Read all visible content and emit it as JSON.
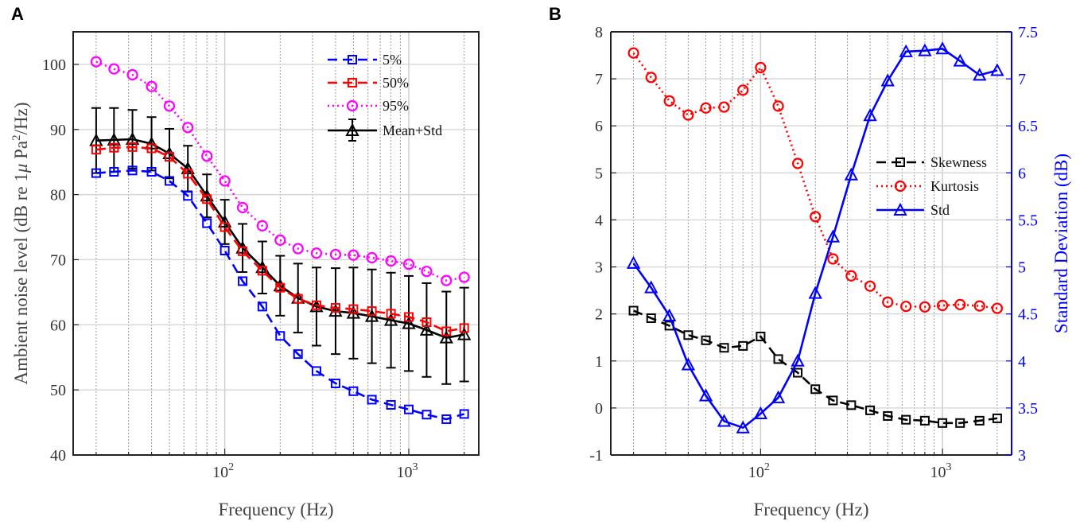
{
  "panels": {
    "A": {
      "letter": "A",
      "xlabel": "Frequency (Hz)",
      "ylabel": "Ambient noise level (dB re 1μ Pa²/Hz)",
      "ylabel_parts": {
        "prefix": "Ambient noise level (dB re 1",
        "mu": "μ",
        "pa": " Pa",
        "sup": "2",
        "suffix": "/Hz)"
      },
      "yticks": [
        "40",
        "50",
        "60",
        "70",
        "80",
        "90",
        "100"
      ],
      "xticks": [
        {
          "base": "10",
          "exp": "2"
        },
        {
          "base": "10",
          "exp": "3"
        }
      ]
    },
    "B": {
      "letter": "B",
      "xlabel": "Frequency (Hz)",
      "ylabel_right": "Standard Deviation (dB)",
      "yticks_left": [
        "-1",
        "0",
        "1",
        "2",
        "3",
        "4",
        "5",
        "6",
        "7",
        "8"
      ],
      "yticks_right": [
        "3",
        "3.5",
        "4",
        "4.5",
        "5",
        "5.5",
        "6",
        "6.5",
        "7",
        "7.5"
      ],
      "xticks": [
        {
          "base": "10",
          "exp": "2"
        },
        {
          "base": "10",
          "exp": "3"
        }
      ]
    }
  },
  "chart_data": [
    {
      "id": "A",
      "type": "line",
      "x_scale": "log",
      "xlabel": "Frequency (Hz)",
      "ylabel": "Ambient noise level (dB re 1μ Pa²/Hz)",
      "xlim": [
        15,
        2400
      ],
      "ylim": [
        40,
        105
      ],
      "grid": true,
      "legend_position": "top-right",
      "x": [
        20,
        25,
        31.5,
        40,
        50,
        63,
        80,
        100,
        125,
        160,
        200,
        250,
        315,
        400,
        500,
        630,
        800,
        1000,
        1250,
        1600,
        2000
      ],
      "series": [
        {
          "name": "5%",
          "color": "#0000ff",
          "marker": "square",
          "style": "dashed",
          "values": [
            83.3,
            83.5,
            83.7,
            83.5,
            82.1,
            79.8,
            75.6,
            71.4,
            66.7,
            62.8,
            58.3,
            55.5,
            52.9,
            51.0,
            49.8,
            48.5,
            47.7,
            47.0,
            46.2,
            45.5,
            46.3
          ]
        },
        {
          "name": "50%",
          "color": "#ff0000",
          "marker": "square",
          "style": "dashed",
          "values": [
            86.9,
            87.2,
            87.3,
            87.1,
            85.8,
            83.2,
            79.3,
            75.0,
            71.3,
            68.3,
            65.7,
            64.0,
            63.0,
            62.6,
            62.4,
            62.1,
            61.7,
            61.2,
            60.4,
            59.0,
            59.5
          ]
        },
        {
          "name": "95%",
          "color": "#ff00ff",
          "marker": "circle",
          "style": "dotted",
          "values": [
            100.4,
            99.3,
            98.4,
            96.6,
            93.6,
            90.3,
            85.9,
            82.1,
            78.0,
            75.2,
            73.0,
            71.7,
            71.0,
            70.8,
            70.7,
            70.3,
            69.8,
            69.3,
            68.2,
            66.8,
            67.3
          ]
        },
        {
          "name": "Mean+Std",
          "color": "#000000",
          "marker": "triangle",
          "style": "solid",
          "values": [
            88.3,
            88.4,
            88.5,
            87.8,
            86.3,
            84.0,
            79.8,
            75.8,
            71.8,
            68.8,
            66.0,
            64.1,
            62.8,
            62.1,
            61.8,
            61.3,
            60.7,
            60.2,
            59.2,
            58.0,
            58.5
          ],
          "std": [
            5.0,
            4.9,
            4.5,
            4.1,
            3.8,
            3.5,
            3.3,
            3.4,
            3.7,
            4.0,
            4.6,
            5.3,
            6.0,
            6.6,
            7.0,
            7.2,
            7.3,
            7.3,
            7.2,
            7.1,
            7.2
          ]
        }
      ]
    },
    {
      "id": "B",
      "type": "line",
      "x_scale": "log",
      "xlabel": "Frequency (Hz)",
      "ylabel_right": "Standard Deviation (dB)",
      "xlim": [
        15,
        2400
      ],
      "ylim_left": [
        -1,
        8
      ],
      "ylim_right": [
        3,
        7.5
      ],
      "grid": true,
      "legend_position": "right",
      "x": [
        20,
        25,
        31.5,
        40,
        50,
        63,
        80,
        100,
        125,
        160,
        200,
        250,
        315,
        400,
        500,
        630,
        800,
        1000,
        1250,
        1600,
        2000
      ],
      "series": [
        {
          "name": "Skewness",
          "axis": "left",
          "color": "#000000",
          "marker": "square",
          "style": "dashed",
          "values": [
            2.07,
            1.91,
            1.75,
            1.55,
            1.44,
            1.28,
            1.32,
            1.52,
            1.04,
            0.75,
            0.4,
            0.16,
            0.06,
            -0.05,
            -0.17,
            -0.25,
            -0.27,
            -0.32,
            -0.32,
            -0.27,
            -0.22
          ]
        },
        {
          "name": "Kurtosis",
          "axis": "left",
          "color": "#ff0000",
          "marker": "circle",
          "style": "dotted",
          "values": [
            7.55,
            7.03,
            6.53,
            6.23,
            6.38,
            6.4,
            6.76,
            7.24,
            6.42,
            5.2,
            4.07,
            3.17,
            2.81,
            2.59,
            2.25,
            2.16,
            2.15,
            2.18,
            2.2,
            2.17,
            2.12
          ]
        },
        {
          "name": "Std",
          "axis": "right",
          "color": "#0000ff",
          "marker": "triangle",
          "style": "solid",
          "values": [
            5.04,
            4.78,
            4.48,
            3.96,
            3.63,
            3.36,
            3.29,
            3.44,
            3.61,
            4.0,
            4.72,
            5.32,
            5.98,
            6.61,
            6.98,
            7.29,
            7.3,
            7.32,
            7.19,
            7.04,
            7.09
          ]
        }
      ]
    }
  ]
}
